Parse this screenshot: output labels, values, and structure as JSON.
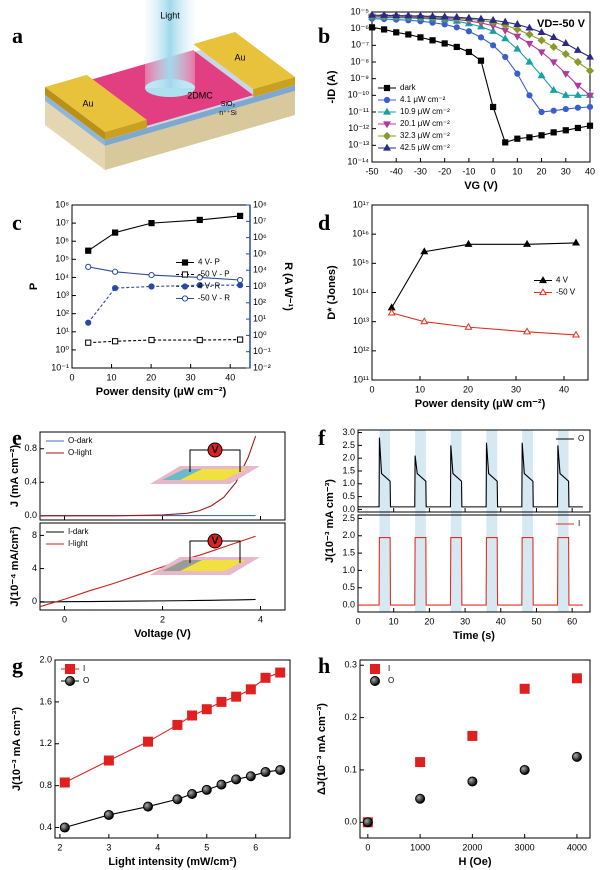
{
  "diagram": {
    "label": "a",
    "light": "Light",
    "au_left": "Au",
    "au_right": "Au",
    "channel": "2DMC",
    "oxide": "SiO₂",
    "substrate": "n⁺⁺Si"
  },
  "chart_data": [
    {
      "type": "line",
      "label": "b",
      "annotation": "VD=-50 V",
      "xlabel": "VG (V)",
      "ylabel": "-ID (A)",
      "xlim": [
        -50,
        40
      ],
      "xticks": [
        -50,
        -40,
        -30,
        -20,
        -10,
        0,
        10,
        20,
        30,
        40
      ],
      "ylim": [
        1e-14,
        1e-05
      ],
      "ylog": true,
      "yticks": [
        {
          "value": 1e-14,
          "label": "10⁻¹⁴"
        },
        {
          "value": 1e-13,
          "label": "10⁻¹³"
        },
        {
          "value": 1e-12,
          "label": "10⁻¹²"
        },
        {
          "value": 1e-11,
          "label": "10⁻¹¹"
        },
        {
          "value": 1e-10,
          "label": "10⁻¹⁰"
        },
        {
          "value": 1e-09,
          "label": "10⁻⁹"
        },
        {
          "value": 1e-08,
          "label": "10⁻⁸"
        },
        {
          "value": 1e-07,
          "label": "10⁻⁷"
        },
        {
          "value": 1e-06,
          "label": "10⁻⁶"
        },
        {
          "value": 1e-05,
          "label": "10⁻⁵"
        }
      ],
      "legend": "lower left",
      "x": [
        -50,
        -45,
        -40,
        -35,
        -30,
        -25,
        -20,
        -15,
        -10,
        -5,
        0,
        5,
        10,
        15,
        20,
        25,
        30,
        35,
        40
      ],
      "series": [
        {
          "name": "dark",
          "color": "#000000",
          "marker": "square",
          "linestyle": "solid",
          "values": [
            1.2e-06,
            9e-07,
            6e-07,
            4.5e-07,
            3e-07,
            2e-07,
            1.3e-07,
            8e-08,
            4e-08,
            1.2e-08,
            2e-11,
            1.5e-13,
            2.5e-13,
            3e-13,
            4e-13,
            6e-13,
            8e-13,
            1.1e-12,
            1.5e-12
          ]
        },
        {
          "name": "4.1 μW cm⁻²",
          "color": "#3a5fcd",
          "marker": "circle",
          "linestyle": "solid",
          "values": [
            4e-06,
            3.8e-06,
            3.5e-06,
            3.2e-06,
            2.8e-06,
            2.3e-06,
            1.8e-06,
            1.2e-06,
            7e-07,
            3e-07,
            1e-07,
            2e-08,
            2e-09,
            1e-10,
            1e-11,
            1.2e-11,
            1.5e-11,
            1.8e-11,
            2e-11
          ]
        },
        {
          "name": "10.9 μW cm⁻²",
          "color": "#17a2a0",
          "marker": "triangle",
          "linestyle": "solid",
          "values": [
            5e-06,
            4.8e-06,
            4.6e-06,
            4.4e-06,
            4.1e-06,
            3.8e-06,
            3.4e-06,
            2.8e-06,
            2e-06,
            1.3e-06,
            7e-07,
            2.5e-07,
            6e-08,
            1e-08,
            1.5e-09,
            2e-10,
            1e-10,
            1e-10,
            1e-10
          ]
        },
        {
          "name": "20.1 μW cm⁻²",
          "color": "#b03a9c",
          "marker": "triangle-down",
          "linestyle": "solid",
          "values": [
            5.5e-06,
            5.3e-06,
            5.1e-06,
            4.9e-06,
            4.6e-06,
            4.3e-06,
            4e-06,
            3.5e-06,
            2.9e-06,
            2.2e-06,
            1.5e-06,
            8e-07,
            3.5e-07,
            1.3e-07,
            4e-08,
            1e-08,
            2e-09,
            4e-10,
            1e-10
          ]
        },
        {
          "name": "32.3 μW cm⁻²",
          "color": "#8a9a2a",
          "marker": "diamond",
          "linestyle": "solid",
          "values": [
            6e-06,
            5.8e-06,
            5.6e-06,
            5.4e-06,
            5.2e-06,
            4.9e-06,
            4.6e-06,
            4.2e-06,
            3.7e-06,
            3.1e-06,
            2.4e-06,
            1.6e-06,
            9e-07,
            4.5e-07,
            2e-07,
            8e-08,
            3e-08,
            1e-08,
            3e-09
          ]
        },
        {
          "name": "42.5 μW cm⁻²",
          "color": "#2a2a8a",
          "marker": "triangle",
          "linestyle": "solid",
          "values": [
            6.5e-06,
            6.3e-06,
            6.1e-06,
            5.9e-06,
            5.7e-06,
            5.4e-06,
            5.1e-06,
            4.8e-06,
            4.3e-06,
            3.8e-06,
            3.2e-06,
            2.5e-06,
            1.8e-06,
            1.1e-06,
            6e-07,
            3e-07,
            1.3e-07,
            5e-08,
            2e-08
          ]
        }
      ]
    },
    {
      "type": "line",
      "label": "c",
      "xlabel": "Power density (μW cm⁻²)",
      "ylabel": "P",
      "y2label": "R (A W⁻¹)",
      "y2color": "#2b4aa0",
      "xlim": [
        0,
        45
      ],
      "xticks": [
        0,
        10,
        20,
        30,
        40
      ],
      "ylim": [
        0.1,
        100000000.0
      ],
      "ylog": true,
      "yticks": [
        {
          "value": 0.1,
          "label": "10⁻¹"
        },
        {
          "value": 1,
          "label": "10⁰"
        },
        {
          "value": 10,
          "label": "10¹"
        },
        {
          "value": 100,
          "label": "10²"
        },
        {
          "value": 1000,
          "label": "10³"
        },
        {
          "value": 10000,
          "label": "10⁴"
        },
        {
          "value": 100000,
          "label": "10⁵"
        },
        {
          "value": 1000000,
          "label": "10⁶"
        },
        {
          "value": 10000000,
          "label": "10⁷"
        },
        {
          "value": 100000000,
          "label": "10⁸"
        }
      ],
      "y2lim": [
        0.01,
        100000000.0
      ],
      "y2log": true,
      "y2ticks": [
        {
          "value": 0.01,
          "label": "10⁻²"
        },
        {
          "value": 0.1,
          "label": "10⁻¹"
        },
        {
          "value": 1,
          "label": "10⁰"
        },
        {
          "value": 10,
          "label": "10¹"
        },
        {
          "value": 100,
          "label": "10²"
        },
        {
          "value": 1000,
          "label": "10³"
        },
        {
          "value": 10000,
          "label": "10⁴"
        },
        {
          "value": 100000,
          "label": "10⁵"
        },
        {
          "value": 1000000,
          "label": "10⁶"
        },
        {
          "value": 10000000,
          "label": "10⁷"
        },
        {
          "value": 100000000,
          "label": "10⁸"
        }
      ],
      "legend": "center right",
      "x": [
        4.1,
        10.9,
        20.1,
        32.3,
        42.5
      ],
      "series": [
        {
          "name": "4 V- P",
          "color": "#000000",
          "marker": "square",
          "linestyle": "solid",
          "values": [
            300000,
            3000000,
            10000000,
            15000000,
            25000000
          ]
        },
        {
          "name": "-50 V - P",
          "color": "#000000",
          "marker": "square-open",
          "linestyle": "dashed",
          "values": [
            2.5,
            3,
            3.5,
            3.5,
            3.7
          ]
        },
        {
          "name": "4 V- R",
          "color": "#2b4aa0",
          "marker": "circle",
          "linestyle": "dashed",
          "axis": "y2",
          "values": [
            6,
            800,
            1000,
            1200,
            1200
          ]
        },
        {
          "name": "-50 V - R",
          "color": "#2b4aa0",
          "marker": "circle-open",
          "linestyle": "solid",
          "axis": "y2",
          "values": [
            16000,
            8000,
            5000,
            3600,
            2500
          ]
        }
      ]
    },
    {
      "type": "line",
      "label": "d",
      "xlabel": "Power density (μW cm⁻²)",
      "ylabel": "D* (Jones)",
      "xlim": [
        0,
        45
      ],
      "xticks": [
        0,
        10,
        20,
        30,
        40
      ],
      "ylim": [
        100000000000.0,
        1e+17
      ],
      "ylog": true,
      "yticks": [
        {
          "value": 100000000000.0,
          "label": "10¹¹"
        },
        {
          "value": 1000000000000.0,
          "label": "10¹²"
        },
        {
          "value": 10000000000000.0,
          "label": "10¹³"
        },
        {
          "value": 100000000000000.0,
          "label": "10¹⁴"
        },
        {
          "value": 1000000000000000.0,
          "label": "10¹⁵"
        },
        {
          "value": 1e+16,
          "label": "10¹⁶"
        },
        {
          "value": 1e+17,
          "label": "10¹⁷"
        }
      ],
      "legend": "center right",
      "x": [
        4.1,
        10.9,
        20.1,
        32.3,
        42.5
      ],
      "series": [
        {
          "name": "4 V",
          "color": "#000000",
          "marker": "triangle",
          "linestyle": "solid",
          "values": [
            30000000000000.0,
            2500000000000000.0,
            4500000000000000.0,
            4500000000000000.0,
            5000000000000000.0
          ]
        },
        {
          "name": "-50 V",
          "color": "#e03020",
          "marker": "triangle-open",
          "linestyle": "solid",
          "values": [
            20000000000000.0,
            10000000000000.0,
            6500000000000.0,
            4500000000000.0,
            3500000000000.0
          ]
        }
      ]
    },
    {
      "type": "line",
      "label": "e",
      "xlabel": "Voltage (V)",
      "inset_labels": [
        "V",
        "V"
      ],
      "xlim": [
        -0.5,
        4.5
      ],
      "xticks": [
        0,
        2,
        4
      ],
      "x": [
        -0.5,
        0,
        0.5,
        1,
        1.5,
        2,
        2.5,
        2.75,
        3,
        3.25,
        3.5,
        3.75,
        3.9
      ],
      "subplots": [
        {
          "ylabel": "J (mA cm⁻²)",
          "ylim": [
            -0.05,
            1.0
          ],
          "yticks": [
            {
              "value": 0,
              "label": "0.0"
            },
            0.4,
            0.8
          ],
          "legend": "upper left",
          "legend_colored": true,
          "series": [
            {
              "name": "O-dark",
              "color": "#3a6fc0",
              "marker": "none",
              "linestyle": "solid",
              "values": [
                0.003,
                0.003,
                0.003,
                0.003,
                0.003,
                0.003,
                0.003,
                0.003,
                0.003,
                0.003,
                0.003,
                0.003,
                0.003
              ]
            },
            {
              "name": "O-light",
              "color": "#a01818",
              "marker": "none",
              "linestyle": "solid",
              "values": [
                0,
                0,
                0,
                0,
                0.005,
                0.01,
                0.03,
                0.06,
                0.12,
                0.22,
                0.4,
                0.7,
                0.95
              ]
            }
          ]
        },
        {
          "ylabel": "J(10⁻⁴ mA/cm²)",
          "ylim": [
            -1,
            9.5
          ],
          "yticks": [
            0,
            4,
            8
          ],
          "legend": "upper left",
          "legend_colored": true,
          "series": [
            {
              "name": "I-dark",
              "color": "#000000",
              "marker": "none",
              "linestyle": "solid",
              "values": [
                -0.05,
                0,
                0.02,
                0.05,
                0.08,
                0.1,
                0.13,
                0.15,
                0.17,
                0.2,
                0.22,
                0.25,
                0.27
              ]
            },
            {
              "name": "I-light",
              "color": "#d02020",
              "marker": "none",
              "linestyle": "solid",
              "values": [
                -0.6,
                0.3,
                1.3,
                2.2,
                3.2,
                4.2,
                5.2,
                5.6,
                6.1,
                6.6,
                7.1,
                7.6,
                7.9
              ]
            }
          ]
        }
      ]
    },
    {
      "type": "line",
      "label": "f",
      "xlabel": "Time (s)",
      "ylabel": "J(10⁻³ mA cm⁻³)",
      "xlim": [
        0,
        65
      ],
      "xticks": [
        0,
        10,
        20,
        30,
        40,
        50,
        60
      ],
      "light_on": [
        [
          6,
          9
        ],
        [
          16,
          19
        ],
        [
          26,
          29
        ],
        [
          36,
          39
        ],
        [
          46,
          49
        ],
        [
          56,
          59
        ]
      ],
      "x": [
        0,
        5.9,
        6,
        6.6,
        9,
        9.1,
        15.9,
        16,
        16.6,
        19,
        19.1,
        25.9,
        26,
        26.6,
        29,
        29.1,
        35.9,
        36,
        36.6,
        39,
        39.1,
        45.9,
        46,
        46.6,
        49,
        49.1,
        55.9,
        56,
        56.6,
        59,
        59.1,
        63
      ],
      "subplots": [
        {
          "ylim": [
            -0.1,
            3.1
          ],
          "yticks": [
            {
              "value": 0,
              "label": "0.0"
            },
            0.5,
            {
              "value": 1,
              "label": "1.0"
            },
            1.5,
            {
              "value": 2,
              "label": "2.0"
            },
            2.5,
            {
              "value": 3,
              "label": "3.0"
            }
          ],
          "legend": "upper right",
          "series": [
            {
              "name": "O",
              "color": "#000000",
              "marker": "none",
              "linestyle": "solid",
              "values": [
                0.1,
                0.1,
                2.8,
                1.4,
                1.1,
                0.1,
                0.1,
                2.1,
                1.4,
                1.1,
                0.1,
                0.1,
                2.5,
                1.4,
                1.1,
                0.1,
                0.1,
                2.6,
                1.4,
                1.1,
                0.1,
                0.1,
                2.6,
                1.4,
                1.1,
                0.1,
                0.1,
                2.5,
                1.4,
                1.1,
                0.1,
                0.1
              ]
            }
          ]
        },
        {
          "ylim": [
            -0.2,
            2.6
          ],
          "yticks": [
            {
              "value": 0,
              "label": "0.0"
            },
            0.5,
            {
              "value": 1,
              "label": "1.0"
            },
            1.5,
            {
              "value": 2,
              "label": "2.0"
            },
            2.5
          ],
          "legend": "upper right",
          "series": [
            {
              "name": "I",
              "color": "#e03020",
              "marker": "none",
              "linestyle": "solid",
              "values": [
                0,
                0,
                1.95,
                1.95,
                1.95,
                0,
                0,
                1.95,
                1.95,
                1.95,
                0,
                0,
                1.95,
                1.95,
                1.95,
                0,
                0,
                1.95,
                1.95,
                1.95,
                0,
                0,
                1.95,
                1.95,
                1.95,
                0,
                0,
                1.95,
                1.95,
                1.95,
                0,
                0
              ]
            }
          ]
        }
      ]
    },
    {
      "type": "line",
      "label": "g",
      "xlabel": "Light intensity (mW/cm²)",
      "ylabel": "J(10⁻³ mA cm⁻³)",
      "xlim": [
        1.9,
        6.7
      ],
      "xticks": [
        2,
        3,
        4,
        5,
        6
      ],
      "ylim": [
        0.3,
        2.0
      ],
      "yticks": [
        0.4,
        0.8,
        1.2,
        1.6,
        {
          "value": 2,
          "label": "2.0"
        }
      ],
      "legend": "upper left",
      "legend_colored": true,
      "x": [
        2.1,
        3.0,
        3.8,
        4.4,
        4.7,
        5.0,
        5.3,
        5.6,
        5.9,
        6.2,
        6.5
      ],
      "series": [
        {
          "name": "I",
          "color": "#e02020",
          "marker": "square",
          "linestyle": "solid",
          "values": [
            0.83,
            1.04,
            1.22,
            1.38,
            1.47,
            1.53,
            1.6,
            1.65,
            1.72,
            1.83,
            1.88
          ]
        },
        {
          "name": "O",
          "color": "#000000",
          "marker": "sphere",
          "linestyle": "solid",
          "values": [
            0.4,
            0.52,
            0.6,
            0.67,
            0.72,
            0.76,
            0.81,
            0.86,
            0.89,
            0.93,
            0.95
          ]
        }
      ]
    },
    {
      "type": "scatter",
      "label": "h",
      "xlabel": "H (Oe)",
      "ylabel": "ΔJ(10⁻³ mA cm⁻³)",
      "xlim": [
        -150,
        4250
      ],
      "xticks": [
        0,
        1000,
        2000,
        3000,
        4000
      ],
      "ylim": [
        -0.03,
        0.31
      ],
      "yticks": [
        {
          "value": 0,
          "label": "0.0"
        },
        0.1,
        0.2,
        0.3
      ],
      "legend": "upper left",
      "legend_colored": true,
      "x": [
        0,
        1000,
        2000,
        3000,
        4000
      ],
      "series": [
        {
          "name": "I",
          "color": "#e02020",
          "marker": "square",
          "linestyle": "none",
          "values": [
            0,
            0.115,
            0.165,
            0.255,
            0.275
          ]
        },
        {
          "name": "O",
          "color": "#000000",
          "marker": "sphere",
          "linestyle": "none",
          "values": [
            0,
            0.045,
            0.078,
            0.1,
            0.125
          ]
        }
      ]
    }
  ]
}
